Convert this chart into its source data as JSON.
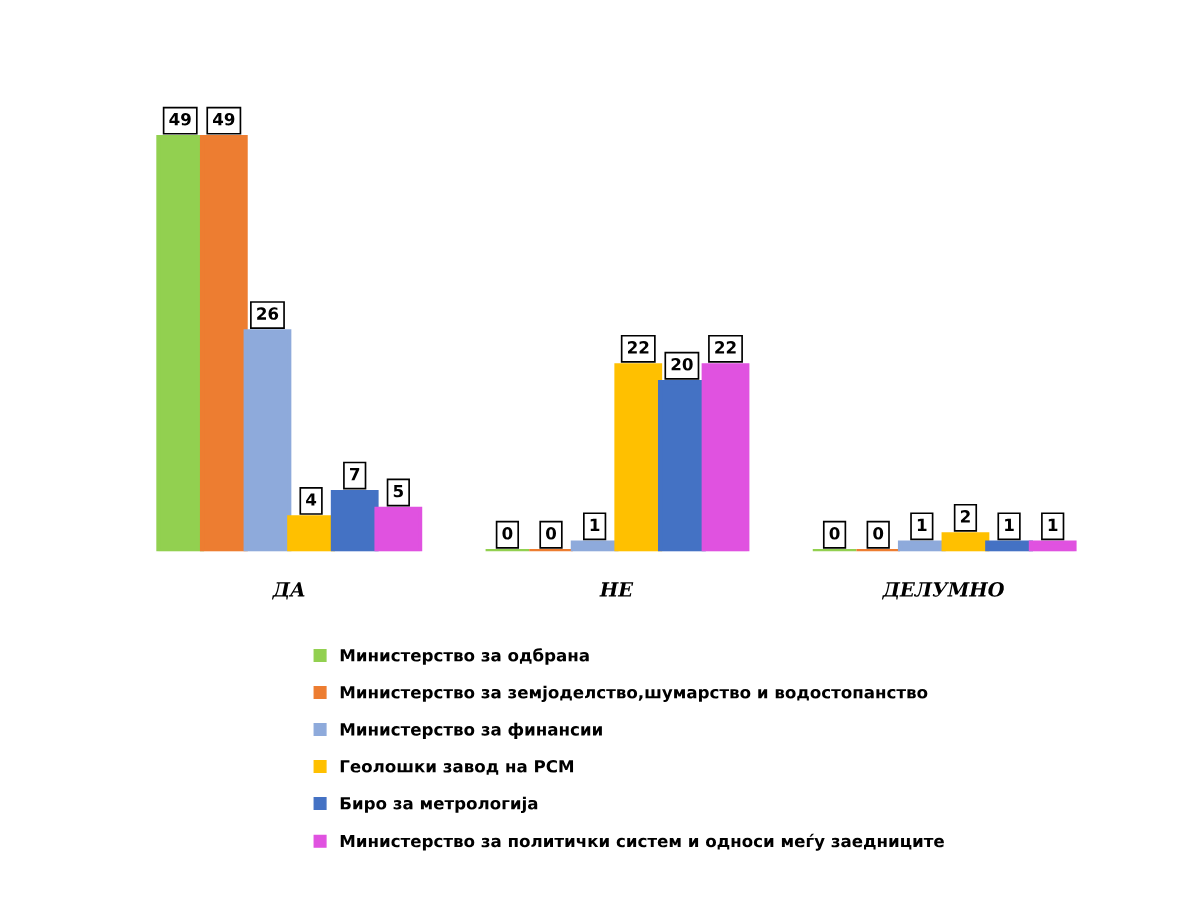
{
  "chart_data": {
    "type": "bar",
    "categories": [
      "ДА",
      "НЕ",
      "ДЕЛУМНО"
    ],
    "series": [
      {
        "name": "Министерство за одбрана",
        "color": "#92d050",
        "values": [
          49,
          0,
          0
        ]
      },
      {
        "name": "Министерство за земјоделство,шумарство и водостопанство",
        "color": "#ed7d31",
        "values": [
          49,
          0,
          0
        ]
      },
      {
        "name": "Министерство за финансии",
        "color": "#8eaadb",
        "values": [
          26,
          1,
          1
        ]
      },
      {
        "name": "Геолошки завод на РСМ",
        "color": "#ffc000",
        "values": [
          4,
          22,
          2
        ]
      },
      {
        "name": "Биро за метрологија",
        "color": "#4472c4",
        "values": [
          7,
          20,
          1
        ]
      },
      {
        "name": "Министерство за политички систем и односи меѓу заедниците",
        "color": "#e052e0",
        "values": [
          5,
          22,
          1
        ]
      }
    ],
    "data_labels": true,
    "legend": "bottom",
    "grid": false,
    "tick_labels": "x"
  }
}
